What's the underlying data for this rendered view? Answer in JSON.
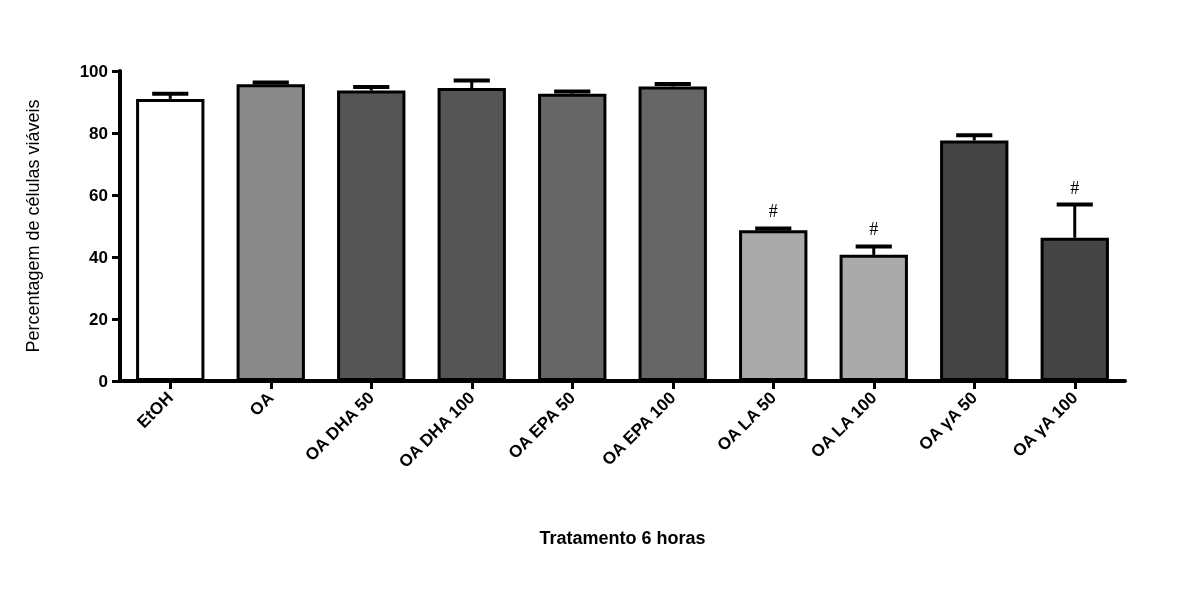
{
  "chart_data": {
    "type": "bar",
    "xlabel": "Tratamento 6 horas",
    "ylabel": "Percentagem de células viáveis",
    "categories": [
      "EtOH",
      "OA",
      "OA DHA 50",
      "OA DHA 100",
      "OA EPA 50",
      "OA EPA 100",
      "OA LA 50",
      "OA LA 100",
      "OA γA 50",
      "OA γA 100"
    ],
    "values": [
      91.0,
      95.7,
      93.7,
      94.5,
      92.7,
      95.0,
      48.6,
      40.7,
      77.6,
      46.2
    ],
    "errors": [
      [
        91.0,
        92.7
      ],
      [
        95.7,
        96.3
      ],
      [
        93.7,
        94.8
      ],
      [
        94.5,
        96.9
      ],
      [
        92.7,
        93.4
      ],
      [
        95.0,
        95.8
      ],
      [
        48.6,
        49.2
      ],
      [
        40.7,
        43.4
      ],
      [
        77.6,
        79.3
      ],
      [
        46.2,
        56.9
      ]
    ],
    "colors": [
      "#ffffff",
      "#8a8a8a",
      "#555555",
      "#555555",
      "#666666",
      "#666666",
      "#aaaaaa",
      "#aaaaaa",
      "#444444",
      "#444444"
    ],
    "ylim": [
      0,
      100
    ],
    "yticks": [
      0,
      20,
      40,
      60,
      80,
      100
    ],
    "grid": false,
    "annotations": [
      {
        "text": "#",
        "x": "OA LA 50",
        "y": 49.2
      },
      {
        "text": "#",
        "x": "OA LA 100",
        "y": 43.4
      },
      {
        "text": "#",
        "x": "OA γA 100",
        "y": 56.9
      }
    ]
  }
}
